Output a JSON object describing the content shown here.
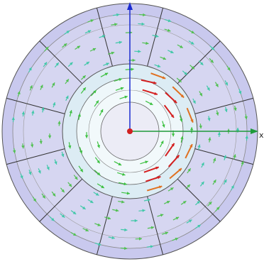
{
  "axes": {
    "x_label": "x"
  }
}
